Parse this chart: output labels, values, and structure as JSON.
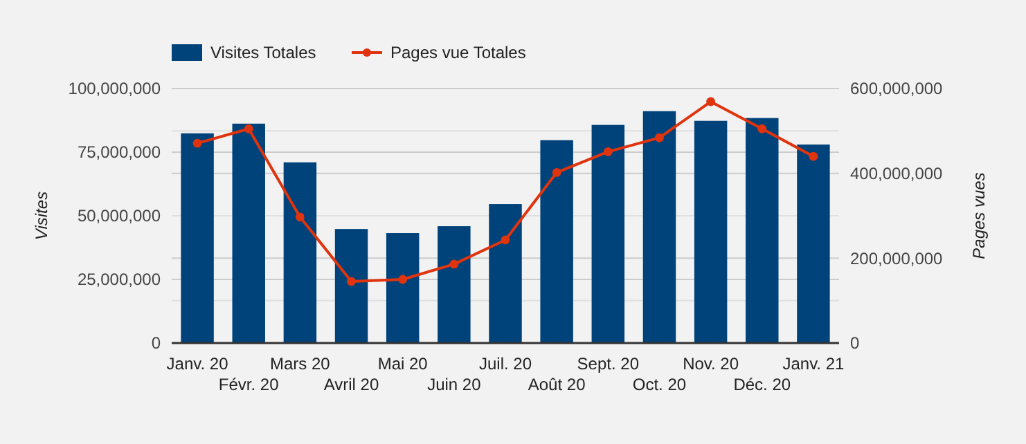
{
  "chart_data": {
    "type": "bar",
    "ylabel": "Visites",
    "y2label": "Pages vues",
    "categories": [
      "Janv. 20",
      "Févr. 20",
      "Mars 20",
      "Avril 20",
      "Mai 20",
      "Juin 20",
      "Juil. 20",
      "Août 20",
      "Sept. 20",
      "Oct. 20",
      "Nov. 20",
      "Déc. 20",
      "Janv. 21"
    ],
    "series": [
      {
        "name": "Visites Totales",
        "color": "#00427a",
        "values": [
          82400000,
          86200000,
          71000000,
          44800000,
          43200000,
          45900000,
          54600000,
          79700000,
          85700000,
          91100000,
          87300000,
          88400000,
          78000000
        ]
      },
      {
        "name": "Pages vue Totales",
        "type": "line",
        "axis": "y2",
        "color": "#e0340e",
        "marker": "circle",
        "values": [
          471000000,
          505000000,
          297000000,
          145000000,
          150000000,
          186000000,
          243000000,
          402000000,
          451000000,
          484000000,
          569000000,
          505000000,
          440000000
        ]
      }
    ],
    "ylim": [
      0,
      100000000
    ],
    "yticks": [
      {
        "value": 0,
        "label": "0"
      },
      {
        "value": 25000000,
        "label": "25,000,000"
      },
      {
        "value": 50000000,
        "label": "50,000,000"
      },
      {
        "value": 75000000,
        "label": "75,000,000"
      },
      {
        "value": 100000000,
        "label": "100,000,000"
      }
    ],
    "y2lim": [
      0,
      600000000
    ],
    "y2ticks": [
      {
        "value": 0,
        "label": "0"
      },
      {
        "value": 100000000,
        "label": null
      },
      {
        "value": 200000000,
        "label": "200,000,000"
      },
      {
        "value": 300000000,
        "label": null
      },
      {
        "value": 400000000,
        "label": "400,000,000"
      },
      {
        "value": 500000000,
        "label": null
      },
      {
        "value": 600000000,
        "label": "600,000,000"
      }
    ],
    "grid": true,
    "legend": "top left"
  }
}
